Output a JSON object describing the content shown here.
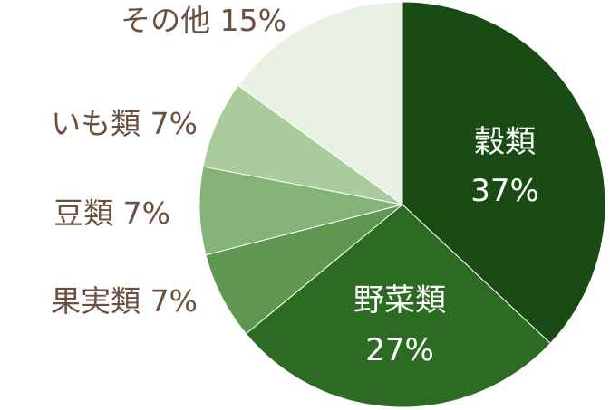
{
  "chart_data": {
    "type": "pie",
    "start_angle_deg": 0,
    "direction": "clockwise",
    "slices": [
      {
        "name": "穀類",
        "value": 37,
        "value_label": "37%",
        "color": "#1a4b14",
        "label_position": "inside"
      },
      {
        "name": "野菜類",
        "value": 27,
        "value_label": "27%",
        "color": "#2c6b22",
        "label_position": "inside"
      },
      {
        "name": "果実類",
        "value": 7,
        "value_label": "7%",
        "color": "#5e9652",
        "label_position": "outside"
      },
      {
        "name": "豆類",
        "value": 7,
        "value_label": "7%",
        "color": "#84b277",
        "label_position": "outside"
      },
      {
        "name": "いも類",
        "value": 7,
        "value_label": "7%",
        "color": "#a9cb9e",
        "label_position": "outside"
      },
      {
        "name": "その他",
        "value": 15,
        "value_label": "15%",
        "color": "#e8f1e4",
        "label_position": "outside"
      }
    ],
    "label_color_inside": "#ffffff",
    "label_color_outside": "#6b5040",
    "slice_border_color": "#ffffff"
  }
}
